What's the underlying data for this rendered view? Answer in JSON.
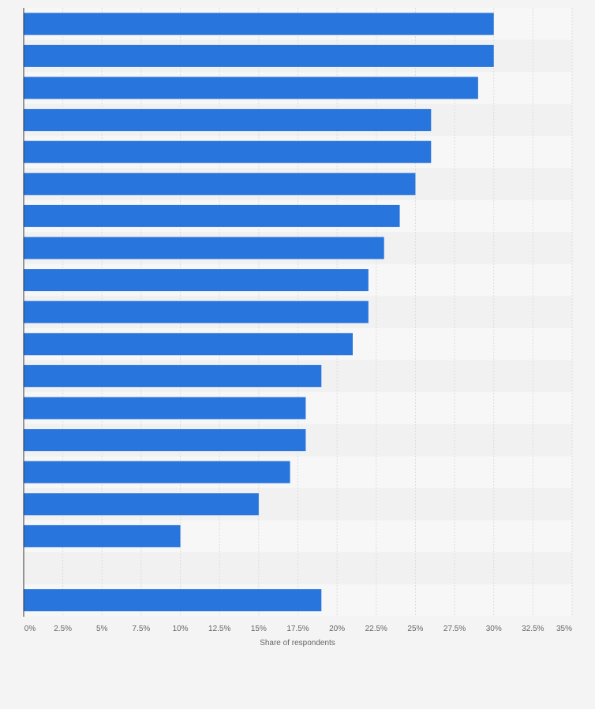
{
  "chart_data": {
    "type": "bar",
    "orientation": "horizontal",
    "categories": [
      "",
      "",
      "",
      "",
      "",
      "",
      "",
      "",
      "",
      "",
      "",
      "",
      "",
      "",
      "",
      "",
      "",
      "",
      ""
    ],
    "values": [
      30,
      30,
      29,
      26,
      26,
      25,
      24,
      23,
      22,
      22,
      21,
      19,
      18,
      18,
      17,
      15,
      10,
      null,
      19
    ],
    "xlabel": "Share of respondents",
    "ylabel": "",
    "xlim": [
      0,
      35
    ],
    "x_ticks": [
      0,
      2.5,
      5,
      7.5,
      10,
      12.5,
      15,
      17.5,
      20,
      22.5,
      25,
      27.5,
      30,
      32.5,
      35
    ],
    "x_tick_labels": [
      "0%",
      "2.5%",
      "5%",
      "7.5%",
      "10%",
      "12.5%",
      "15%",
      "17.5%",
      "20%",
      "22.5%",
      "25%",
      "27.5%",
      "30%",
      "32.5%",
      "35%"
    ],
    "grid": true,
    "legend": "none",
    "colors": {
      "bar": "#2876dd",
      "band_a": "#f7f7f7",
      "band_b": "#f1f1f1",
      "grid": "#dcdcdc",
      "axis": "#333333",
      "text": "#666666"
    }
  }
}
